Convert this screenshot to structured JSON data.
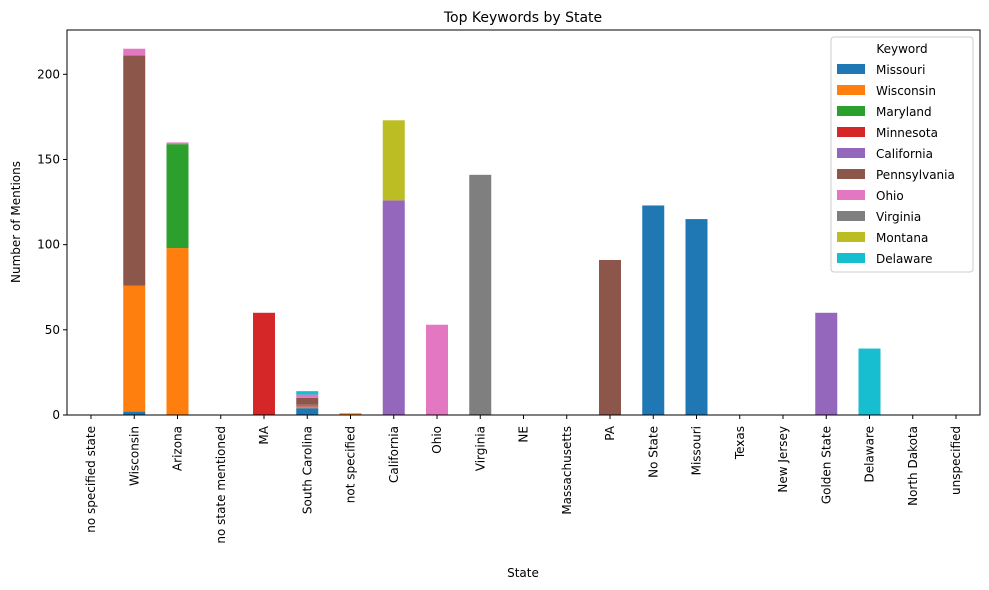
{
  "chart_data": {
    "type": "bar",
    "stacked": true,
    "title": "Top Keywords by State",
    "xlabel": "State",
    "ylabel": "Number of Mentions",
    "ylim": [
      0,
      226
    ],
    "yticks": [
      0,
      50,
      100,
      150,
      200
    ],
    "grid": false,
    "legend_title": "Keyword",
    "legend_position": "upper right",
    "categories": [
      "no specified state",
      "Wisconsin",
      "Arizona",
      "no state mentioned",
      "MA",
      "South Carolina",
      "not specified",
      "California",
      "Ohio",
      "Virginia",
      "NE",
      "Massachusetts",
      "PA",
      "No State",
      "Missouri",
      "Texas",
      "New Jersey",
      "Golden State",
      "Delaware",
      "North Dakota",
      "unspecified"
    ],
    "series": [
      {
        "name": "Missouri",
        "color": "#1f77b4",
        "values": [
          0,
          2,
          0,
          0,
          0,
          4,
          0,
          0,
          0,
          0,
          0,
          0,
          0,
          123,
          115,
          0,
          0,
          0,
          0,
          0,
          0
        ]
      },
      {
        "name": "Wisconsin",
        "color": "#ff7f0e",
        "values": [
          0,
          74,
          98,
          0,
          0,
          1,
          1,
          0,
          0,
          0,
          0,
          0,
          0,
          0,
          0,
          0,
          0,
          0,
          0,
          0,
          0
        ]
      },
      {
        "name": "Maryland",
        "color": "#2ca02c",
        "values": [
          0,
          0,
          61,
          0,
          0,
          0,
          0,
          0,
          0,
          0,
          0,
          0,
          0,
          0,
          0,
          0,
          0,
          0,
          0,
          0,
          0
        ]
      },
      {
        "name": "Minnesota",
        "color": "#d62728",
        "values": [
          0,
          0,
          0,
          0,
          60,
          0,
          0,
          0,
          0,
          0,
          0,
          0,
          0,
          0,
          0,
          0,
          0,
          0,
          0,
          0,
          0
        ]
      },
      {
        "name": "California",
        "color": "#9467bd",
        "values": [
          0,
          0,
          0,
          0,
          0,
          1,
          0,
          126,
          0,
          0,
          0,
          0,
          0,
          0,
          0,
          0,
          0,
          60,
          0,
          0,
          0
        ]
      },
      {
        "name": "Pennsylvania",
        "color": "#8c564b",
        "values": [
          0,
          135,
          0,
          0,
          0,
          4,
          0,
          0,
          0,
          0,
          0,
          0,
          91,
          0,
          0,
          0,
          0,
          0,
          0,
          0,
          0
        ]
      },
      {
        "name": "Ohio",
        "color": "#e377c2",
        "values": [
          0,
          4,
          1,
          0,
          0,
          2,
          0,
          0,
          53,
          0,
          0,
          0,
          0,
          0,
          0,
          0,
          0,
          0,
          0,
          0,
          0
        ]
      },
      {
        "name": "Virginia",
        "color": "#7f7f7f",
        "values": [
          0,
          0,
          0,
          0,
          0,
          0,
          0,
          0,
          0,
          141,
          0,
          0,
          0,
          0,
          0,
          0,
          0,
          0,
          0,
          0,
          0
        ]
      },
      {
        "name": "Montana",
        "color": "#bcbd22",
        "values": [
          0,
          0,
          0,
          0,
          0,
          0,
          0,
          47,
          0,
          0,
          0,
          0,
          0,
          0,
          0,
          0,
          0,
          0,
          0,
          0,
          0
        ]
      },
      {
        "name": "Delaware",
        "color": "#17becf",
        "values": [
          0,
          0,
          0,
          0,
          0,
          2,
          0,
          0,
          0,
          0,
          0,
          0,
          0,
          0,
          0,
          0,
          0,
          0,
          39,
          0,
          0
        ]
      }
    ]
  }
}
